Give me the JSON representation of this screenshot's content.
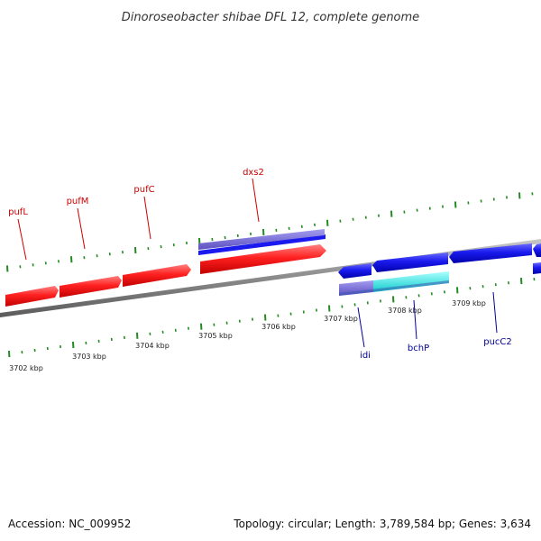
{
  "header": {
    "title": "Dinoroseobacter shibae DFL 12, complete genome"
  },
  "footer": {
    "accession": "Accession: NC_009952",
    "summary": "Topology: circular; Length: 3,789,584 bp; Genes: 3,634"
  },
  "colors": {
    "backbone": "#8a8a8a",
    "tick": "#228b22",
    "forward_gene": "#ff2020",
    "reverse_gene": "#1a1aee",
    "forward_label": "#cc0000",
    "reverse_label": "#000099",
    "annotation_purple": "#7a6ed6",
    "annotation_cyan": "#22eeee"
  },
  "scale": {
    "unit": "kbp",
    "labels": [
      {
        "kbp": 3702,
        "text": "3702 kbp"
      },
      {
        "kbp": 3703,
        "text": "3703 kbp"
      },
      {
        "kbp": 3704,
        "text": "3704 kbp"
      },
      {
        "kbp": 3705,
        "text": "3705 kbp"
      },
      {
        "kbp": 3706,
        "text": "3706 kbp"
      },
      {
        "kbp": 3707,
        "text": "3707 kbp"
      },
      {
        "kbp": 3708,
        "text": "3708 kbp"
      },
      {
        "kbp": 3709,
        "text": "3709 kbp"
      }
    ]
  },
  "genes": [
    {
      "name": "pufL",
      "strand": "+"
    },
    {
      "name": "pufM",
      "strand": "+"
    },
    {
      "name": "pufC",
      "strand": "+"
    },
    {
      "name": "dxs2",
      "strand": "+"
    },
    {
      "name": "idi",
      "strand": "-"
    },
    {
      "name": "bchP",
      "strand": "-"
    },
    {
      "name": "pucC2",
      "strand": "-"
    }
  ]
}
